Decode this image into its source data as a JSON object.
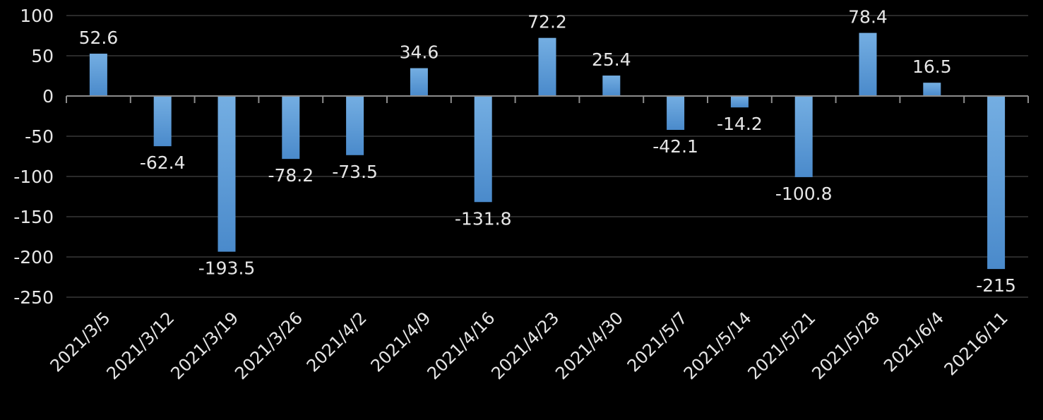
{
  "chart_data": {
    "type": "bar",
    "categories": [
      "2021/3/5",
      "2021/3/12",
      "2021/3/19",
      "2021/3/26",
      "2021/4/2",
      "2021/4/9",
      "2021/4/16",
      "2021/4/23",
      "2021/4/30",
      "2021/5/7",
      "2021/5/14",
      "2021/5/21",
      "2021/5/28",
      "2021/6/4",
      "20216/11"
    ],
    "values": [
      52.6,
      -62.4,
      -193.5,
      -78.2,
      -73.5,
      34.6,
      -131.8,
      72.2,
      25.4,
      -42.1,
      -14.2,
      -100.8,
      78.4,
      16.5,
      -215
    ],
    "data_labels": [
      "52.6",
      "-62.4",
      "-193.5",
      "-78.2",
      "-73.5",
      "34.6",
      "-131.8",
      "72.2",
      "25.4",
      "-42.1",
      "-14.2",
      "-100.8",
      "78.4",
      "16.5",
      "-215"
    ],
    "title": "",
    "xlabel": "",
    "ylabel": "",
    "ylim": [
      -250,
      100
    ],
    "yticks": [
      100,
      50,
      0,
      -50,
      -100,
      -150,
      -200,
      -250
    ],
    "ytick_labels": [
      "100",
      "50",
      "0",
      "-50",
      "-100",
      "-150",
      "-200",
      "-250"
    ],
    "grid": true,
    "legend": "none",
    "colors": {
      "bar_top": "#74aee2",
      "bar_bottom": "#4a8acb",
      "background": "#000000",
      "text": "#e6e6e6",
      "grid": "#2a2a2a",
      "axis": "#8c8c8c"
    }
  }
}
